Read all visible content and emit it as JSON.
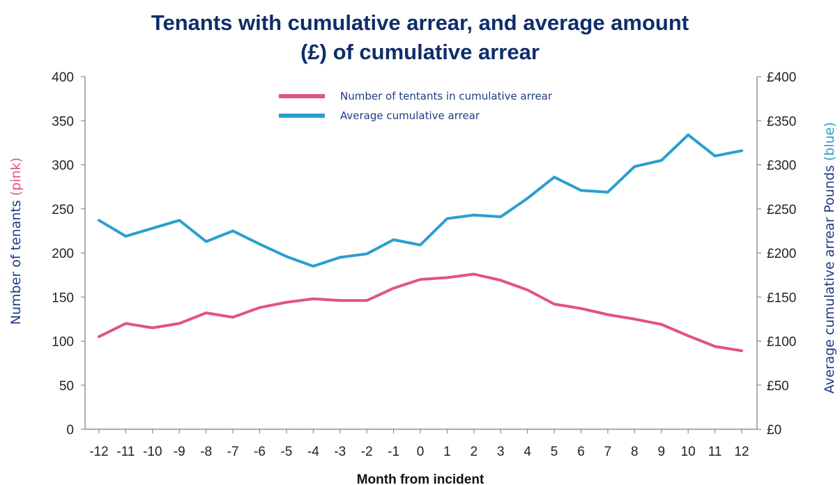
{
  "chart_data": {
    "type": "line",
    "title_lines": [
      "Tenants with cumulative arrear, and average amount",
      "(£) of cumulative arrear"
    ],
    "xlabel": "Month from incident",
    "ylabel_left": {
      "main": "Number of tenants",
      "suffix": "(pink)"
    },
    "ylabel_right": {
      "main": "Average cumulative arrear Pounds",
      "suffix": "(blue)"
    },
    "x": [
      "-12",
      "-11",
      "-10",
      "-9",
      "-8",
      "-7",
      "-6",
      "-5",
      "-4",
      "-3",
      "-2",
      "-1",
      "0",
      "1",
      "2",
      "3",
      "4",
      "5",
      "6",
      "7",
      "8",
      "9",
      "10",
      "11",
      "12"
    ],
    "xtick_labels": [
      "-12",
      "-11",
      "-10",
      "-9",
      "-8",
      "-7",
      "-6",
      "-5",
      "-4",
      "-3",
      "-2",
      "-1",
      "0",
      "1",
      "2",
      "3",
      "4",
      "5",
      "6",
      "7",
      "8",
      "9",
      "10",
      "11",
      "12"
    ],
    "yticks_left": [
      "0",
      "50",
      "100",
      "150",
      "200",
      "250",
      "300",
      "350",
      "400"
    ],
    "yticks_right": [
      "£0",
      "£50",
      "£100",
      "£150",
      "£200",
      "£250",
      "£300",
      "£350",
      "£400"
    ],
    "ylim": [
      0,
      400
    ],
    "grid": false,
    "legend_position": "top-center",
    "series": [
      {
        "name": "Number of tentants in cumulative arrear",
        "axis": "left",
        "color": "#e2518c",
        "values": [
          105,
          120,
          115,
          120,
          132,
          127,
          138,
          144,
          148,
          146,
          146,
          160,
          170,
          172,
          176,
          169,
          158,
          142,
          137,
          130,
          125,
          119,
          106,
          94,
          89
        ]
      },
      {
        "name": "Average cumulative arrear",
        "axis": "right",
        "color": "#2a9fcf",
        "values": [
          237,
          219,
          228,
          237,
          213,
          225,
          210,
          196,
          185,
          195,
          199,
          215,
          209,
          239,
          243,
          241,
          262,
          286,
          271,
          269,
          298,
          305,
          334,
          310,
          316
        ]
      }
    ]
  },
  "colors": {
    "title": "#0f2d6b",
    "left_label": "#1f3c80",
    "left_label_suffix": "#e2518c",
    "right_label": "#1f3c80",
    "right_label_suffix": "#2a9fcf"
  }
}
